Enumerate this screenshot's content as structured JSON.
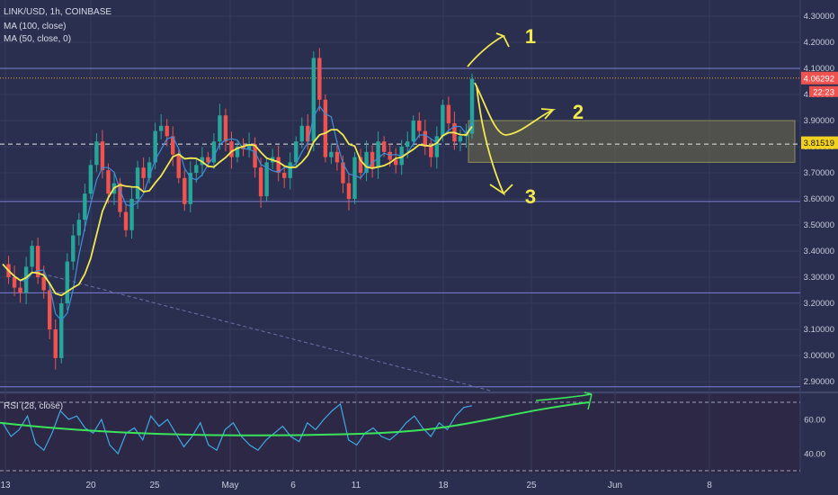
{
  "chart_data": [
    {
      "type": "candlestick",
      "symbol_title": "LINK/USD, 1h, COINBASE",
      "indicators": [
        "MA (100, close)",
        "MA (50, close, 0)"
      ],
      "y_axis": {
        "ticks": [
          2.9,
          3.0,
          3.1,
          3.2,
          3.3,
          3.4,
          3.5,
          3.6,
          3.7,
          3.8,
          3.9,
          4.0,
          4.1,
          4.2,
          4.3
        ],
        "tick_labels": [
          "2.90000",
          "3.00000",
          "3.10000",
          "3.20000",
          "3.30000",
          "3.40000",
          "3.50000",
          "3.60000",
          "3.70000",
          "3.80000",
          "3.90000",
          "4.00000",
          "4.10000",
          "4.20000",
          "4.30000"
        ],
        "ylim": [
          2.87,
          4.33
        ]
      },
      "x_axis": {
        "tick_labels": [
          "13",
          "20",
          "25",
          "May",
          "6",
          "11",
          "18",
          "25",
          "Jun",
          "8"
        ]
      },
      "price_labels": [
        {
          "value": 4.06292,
          "text": "4.06292",
          "color": "#ef5350"
        },
        {
          "value": 3.81519,
          "text": "3.81519",
          "color": "#f2d11f"
        }
      ],
      "countdown": "22:23",
      "horizontal_levels": [
        4.1,
        3.59,
        3.24,
        2.88
      ],
      "dashed_level": 3.81,
      "dotted_level": 4.063,
      "box_zone": [
        3.74,
        3.9
      ],
      "scenario_labels": [
        "1",
        "2",
        "3"
      ],
      "close_series": [
        3.35,
        3.3,
        3.26,
        3.24,
        3.34,
        3.42,
        3.3,
        3.25,
        3.1,
        2.99,
        3.2,
        3.36,
        3.46,
        3.52,
        3.62,
        3.73,
        3.82,
        3.71,
        3.62,
        3.66,
        3.55,
        3.48,
        3.6,
        3.72,
        3.68,
        3.74,
        3.86,
        3.88,
        3.84,
        3.77,
        3.68,
        3.58,
        3.7,
        3.73,
        3.76,
        3.74,
        3.82,
        3.92,
        3.82,
        3.76,
        3.8,
        3.79,
        3.81,
        3.72,
        3.61,
        3.74,
        3.76,
        3.7,
        3.68,
        3.74,
        3.82,
        3.88,
        3.82,
        4.14,
        3.98,
        3.76,
        3.78,
        3.74,
        3.66,
        3.6,
        3.76,
        3.7,
        3.78,
        3.72,
        3.82,
        3.78,
        3.75,
        3.73,
        3.8,
        3.82,
        3.9,
        3.86,
        3.8,
        3.76,
        3.84,
        3.96,
        3.89,
        3.82,
        3.84,
        3.85,
        4.06
      ]
    },
    {
      "type": "line",
      "indicator": "RSI (28, close)",
      "y_axis": {
        "ticks": [
          40,
          60
        ],
        "tick_labels": [
          "40.00",
          "60.00"
        ],
        "ylim": [
          30,
          76
        ]
      },
      "bands": [
        70,
        30
      ],
      "rsi_series": [
        58,
        50,
        54,
        62,
        46,
        42,
        52,
        65,
        60,
        62,
        55,
        52,
        60,
        45,
        40,
        52,
        55,
        48,
        62,
        56,
        60,
        52,
        44,
        50,
        58,
        45,
        42,
        54,
        58,
        50,
        45,
        42,
        48,
        52,
        56,
        50,
        47,
        58,
        54,
        60,
        65,
        69,
        48,
        45,
        52,
        55,
        50,
        48,
        52,
        58,
        62,
        55,
        50,
        58,
        54,
        62,
        67,
        68
      ]
    }
  ]
}
